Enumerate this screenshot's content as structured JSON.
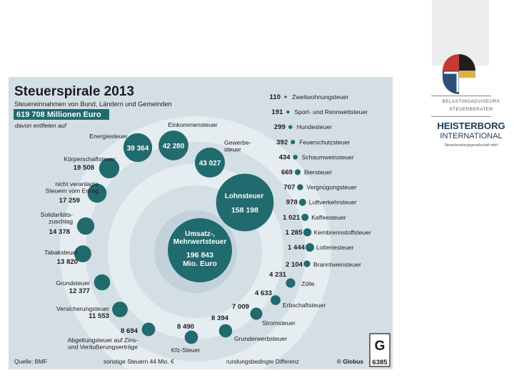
{
  "branding": {
    "line1": "BELASTINGADVISEURS",
    "line2": "STEUERBERATER",
    "name": "HEISTERBORG",
    "name2": "INTERNATIONAL",
    "tagline": "Steuerberatungsgesellschaft mbH",
    "colors": {
      "red": "#c8392f",
      "dark": "#1e1e1e",
      "gold": "#e0b040",
      "blue": "#2b4f7a"
    }
  },
  "chart_data": {
    "type": "bubble-spiral",
    "title": "Steuerspirale 2013",
    "subtitle": "Steuereinnahmen von Bund, Ländern und Gemeinden",
    "total": "619 708 Millionen Euro",
    "total_note": "davon entfielen auf",
    "unit": "Millionen Euro",
    "accent_color": "#1f6b6e",
    "background_color": "#d4dfe5",
    "left_items": [
      {
        "value": "39 364",
        "label": "Energiesteuer",
        "amount": 39364
      },
      {
        "value": "42 280",
        "label": "Einkommensteuer",
        "amount": 42280
      },
      {
        "value": "43 027",
        "label": "Gewerbe-\nsteuer",
        "amount": 43027
      },
      {
        "value": "158 198",
        "label": "Lohnsteuer",
        "amount": 158198
      },
      {
        "value": "196 843",
        "label": "Umsatz-,\nMehrwertsteuer",
        "value_line2": "Mio. Euro",
        "amount": 196843
      },
      {
        "value": "19 508",
        "label": "Körperschaftsteuer",
        "amount": 19508
      },
      {
        "value": "17 259",
        "label": "nicht veranlagte\nSteuern vom Ertrag",
        "amount": 17259
      },
      {
        "value": "14 378",
        "label": "Solidaritäts-\nzuschlag",
        "amount": 14378
      },
      {
        "value": "13 820",
        "label": "Tabaksteuer",
        "amount": 13820
      },
      {
        "value": "12 377",
        "label": "Grundsteuer",
        "amount": 12377
      },
      {
        "value": "11 553",
        "label": "Versicherungsteuer",
        "amount": 11553
      },
      {
        "value": "8 694",
        "label": "Abgeltungsteuer auf Zins-\nund Veräußerungserträge",
        "amount": 8694
      },
      {
        "value": "8 490",
        "label": "Kfz-Steuer",
        "amount": 8490
      },
      {
        "value": "8 394",
        "label": "Grunderwerbsteuer",
        "amount": 8394
      },
      {
        "value": "7 009",
        "label": "Stromsteuer",
        "amount": 7009
      },
      {
        "value": "4 633",
        "label": "Erbschaftsteuer",
        "amount": 4633
      },
      {
        "value": "4 231",
        "label": "Zölle",
        "amount": 4231
      },
      {
        "value": "2 104",
        "label": "Branntweinsteuer",
        "amount": 2104
      }
    ],
    "right_list": [
      {
        "value": "110",
        "label": "Zweitwohnungsteuer",
        "amount": 110
      },
      {
        "value": "191",
        "label": "Sport- und Rennwettsteuer",
        "amount": 191
      },
      {
        "value": "299",
        "label": "Hundesteuer",
        "amount": 299
      },
      {
        "value": "392",
        "label": "Feuerschutzsteuer",
        "amount": 392
      },
      {
        "value": "434",
        "label": "Schaumweinsteuer",
        "amount": 434
      },
      {
        "value": "669",
        "label": "Biersteuer",
        "amount": 669
      },
      {
        "value": "707",
        "label": "Vergnügungsteuer",
        "amount": 707
      },
      {
        "value": "978",
        "label": "Luftverkehrsteuer",
        "amount": 978
      },
      {
        "value": "1 021",
        "label": "Kaffeesteuer",
        "amount": 1021
      },
      {
        "value": "1 285",
        "label": "Kernbrennstoffsteuer",
        "amount": 1285
      },
      {
        "value": "1 444",
        "label": "Lotteriesteuer",
        "amount": 1444
      }
    ],
    "footer": {
      "source": "Quelle: BMF",
      "other": "sonstige Steuern 44 Mio. €",
      "rounding": "rundungsbedingte Differenz",
      "credit": "© Globus",
      "badge_letter": "G",
      "badge_number": "6385"
    }
  }
}
